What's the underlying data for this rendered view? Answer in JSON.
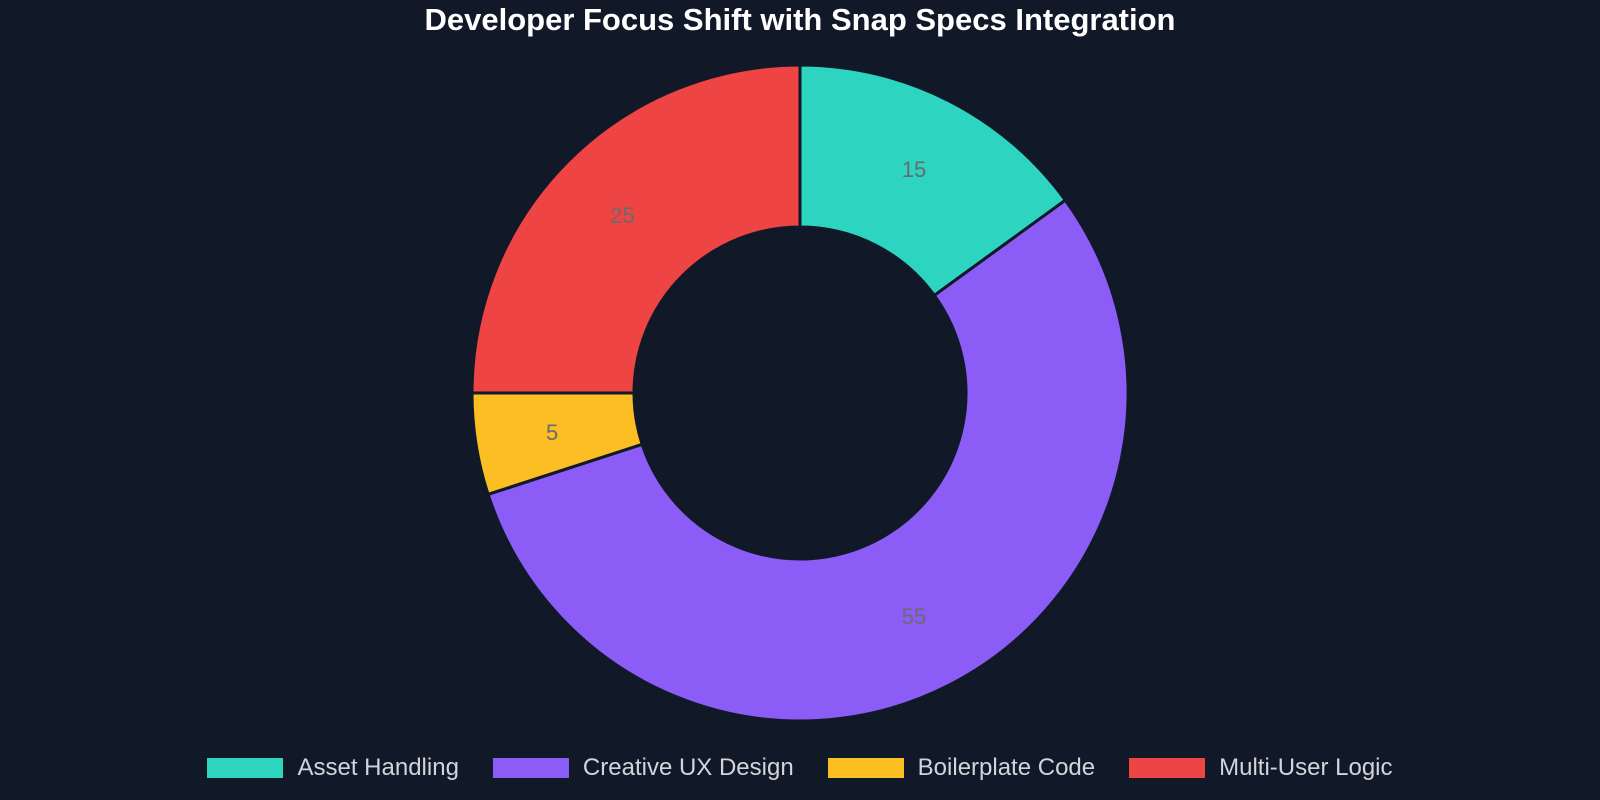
{
  "chart_data": {
    "type": "pie",
    "title": "Developer Focus Shift with Snap Specs Integration",
    "categories": [
      "Asset Handling",
      "Creative UX Design",
      "Boilerplate Code",
      "Multi-User Logic"
    ],
    "values": [
      15,
      55,
      5,
      25
    ],
    "colors": [
      "#2dd4bf",
      "#8b5cf6",
      "#fbbf24",
      "#ef4444"
    ],
    "background": "#111827",
    "donut": true,
    "legend_position": "bottom"
  }
}
